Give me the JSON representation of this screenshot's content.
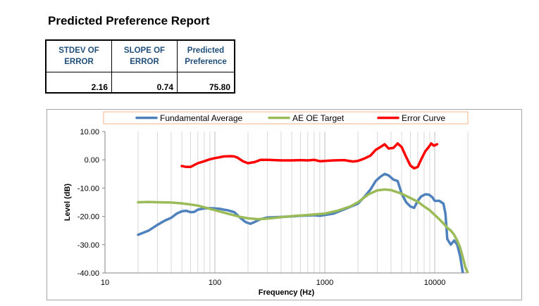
{
  "report": {
    "title": "Predicted Preference Report",
    "headers": [
      "STDEV OF ERROR",
      "SLOPE OF ERROR",
      "Predicted Preference"
    ],
    "values": [
      "2.16",
      "0.74",
      "75.80"
    ]
  },
  "chart_data": {
    "type": "line",
    "title": "",
    "xlabel": "Frequency (Hz)",
    "ylabel": "Level (dB)",
    "xscale": "log",
    "xlim": [
      10,
      20000
    ],
    "ylim": [
      -40,
      10
    ],
    "x_ticks": [
      10,
      100,
      1000,
      10000
    ],
    "x_tick_labels": [
      "10",
      "100",
      "1000",
      "10000"
    ],
    "y_ticks": [
      10,
      0,
      -10,
      -20,
      -30,
      -40
    ],
    "y_tick_labels": [
      "10.00",
      "0.00",
      "-10.00",
      "-20.00",
      "-30.00",
      "-40.00"
    ],
    "grid": "vertical minor log grid",
    "legend": "top",
    "series": [
      {
        "name": "Fundamental Average",
        "color": "#4f81bd",
        "points": [
          [
            20,
            -26.5
          ],
          [
            25,
            -25
          ],
          [
            30,
            -23
          ],
          [
            35,
            -21.5
          ],
          [
            40,
            -20.5
          ],
          [
            45,
            -19
          ],
          [
            50,
            -18.2
          ],
          [
            55,
            -18
          ],
          [
            60,
            -18.5
          ],
          [
            65,
            -18.4
          ],
          [
            70,
            -17.6
          ],
          [
            80,
            -17.2
          ],
          [
            90,
            -17.1
          ],
          [
            100,
            -17.2
          ],
          [
            110,
            -17.3
          ],
          [
            120,
            -17.6
          ],
          [
            130,
            -17.8
          ],
          [
            150,
            -18.5
          ],
          [
            170,
            -20.5
          ],
          [
            190,
            -22
          ],
          [
            210,
            -22.6
          ],
          [
            230,
            -22
          ],
          [
            260,
            -21
          ],
          [
            300,
            -20.4
          ],
          [
            400,
            -20.2
          ],
          [
            500,
            -20
          ],
          [
            600,
            -19.8
          ],
          [
            700,
            -19.7
          ],
          [
            800,
            -19.6
          ],
          [
            900,
            -19.8
          ],
          [
            1000,
            -19.5
          ],
          [
            1200,
            -19
          ],
          [
            1500,
            -17.5
          ],
          [
            2000,
            -15.5
          ],
          [
            2300,
            -13
          ],
          [
            2600,
            -10.5
          ],
          [
            2900,
            -7.5
          ],
          [
            3200,
            -6
          ],
          [
            3500,
            -5
          ],
          [
            3800,
            -5.5
          ],
          [
            4200,
            -7
          ],
          [
            4600,
            -7.5
          ],
          [
            5000,
            -12
          ],
          [
            5500,
            -15
          ],
          [
            6000,
            -16.5
          ],
          [
            6500,
            -17
          ],
          [
            7000,
            -14.5
          ],
          [
            7500,
            -13
          ],
          [
            8200,
            -12.2
          ],
          [
            8800,
            -12.3
          ],
          [
            9500,
            -13.2
          ],
          [
            10000,
            -14.5
          ],
          [
            11000,
            -14.5
          ],
          [
            12000,
            -15.5
          ],
          [
            12500,
            -19
          ],
          [
            13000,
            -28
          ],
          [
            14000,
            -30
          ],
          [
            15000,
            -28.5
          ],
          [
            16000,
            -30
          ],
          [
            17000,
            -34
          ],
          [
            18000,
            -40
          ]
        ]
      },
      {
        "name": "AE OE Target",
        "color": "#9bbb59",
        "points": [
          [
            20,
            -15
          ],
          [
            25,
            -14.9
          ],
          [
            30,
            -15
          ],
          [
            40,
            -15.1
          ],
          [
            50,
            -15.4
          ],
          [
            60,
            -15.8
          ],
          [
            70,
            -16.2
          ],
          [
            80,
            -16.8
          ],
          [
            100,
            -17.8
          ],
          [
            130,
            -19
          ],
          [
            170,
            -20.2
          ],
          [
            200,
            -20.7
          ],
          [
            250,
            -21
          ],
          [
            300,
            -20.8
          ],
          [
            400,
            -20.3
          ],
          [
            500,
            -19.9
          ],
          [
            700,
            -19.5
          ],
          [
            1000,
            -19
          ],
          [
            1300,
            -18
          ],
          [
            1700,
            -16.5
          ],
          [
            2000,
            -15
          ],
          [
            2500,
            -12.2
          ],
          [
            3000,
            -10.8
          ],
          [
            3500,
            -10.5
          ],
          [
            4000,
            -10.7
          ],
          [
            5000,
            -12
          ],
          [
            6000,
            -13.5
          ],
          [
            7000,
            -14.8
          ],
          [
            8000,
            -16.5
          ],
          [
            9000,
            -17.8
          ],
          [
            10000,
            -19.5
          ],
          [
            11000,
            -21
          ],
          [
            12000,
            -22.5
          ],
          [
            13000,
            -24
          ],
          [
            14000,
            -25
          ],
          [
            15000,
            -26.5
          ],
          [
            16000,
            -28.5
          ],
          [
            17000,
            -31
          ],
          [
            18000,
            -34.5
          ],
          [
            19000,
            -38
          ],
          [
            20000,
            -40
          ]
        ]
      },
      {
        "name": "Error Curve",
        "color": "#ff0000",
        "points": [
          [
            50,
            -2.2
          ],
          [
            55,
            -2.5
          ],
          [
            60,
            -2.5
          ],
          [
            70,
            -1.2
          ],
          [
            80,
            -0.5
          ],
          [
            90,
            0.2
          ],
          [
            100,
            0.6
          ],
          [
            110,
            0.9
          ],
          [
            120,
            1.2
          ],
          [
            140,
            1.3
          ],
          [
            150,
            1.2
          ],
          [
            160,
            0.8
          ],
          [
            180,
            -0.5
          ],
          [
            200,
            -1.2
          ],
          [
            230,
            -0.8
          ],
          [
            260,
            0
          ],
          [
            300,
            0
          ],
          [
            400,
            -0.2
          ],
          [
            500,
            -0.2
          ],
          [
            600,
            -0.1
          ],
          [
            700,
            -0.2
          ],
          [
            800,
            0
          ],
          [
            900,
            -0.5
          ],
          [
            1000,
            -0.4
          ],
          [
            1200,
            -0.2
          ],
          [
            1500,
            -0.1
          ],
          [
            1800,
            -0.6
          ],
          [
            2000,
            -0.4
          ],
          [
            2300,
            0.5
          ],
          [
            2600,
            1.5
          ],
          [
            2900,
            3.5
          ],
          [
            3200,
            4.5
          ],
          [
            3500,
            5.5
          ],
          [
            3800,
            4
          ],
          [
            4200,
            4.2
          ],
          [
            4600,
            5.8
          ],
          [
            5000,
            4.5
          ],
          [
            5500,
            1
          ],
          [
            6000,
            -2
          ],
          [
            6500,
            -3
          ],
          [
            7000,
            -2.5
          ],
          [
            7500,
            0
          ],
          [
            8200,
            3
          ],
          [
            8800,
            4.5
          ],
          [
            9300,
            5.8
          ],
          [
            9800,
            5
          ],
          [
            10500,
            5.5
          ]
        ]
      }
    ]
  }
}
